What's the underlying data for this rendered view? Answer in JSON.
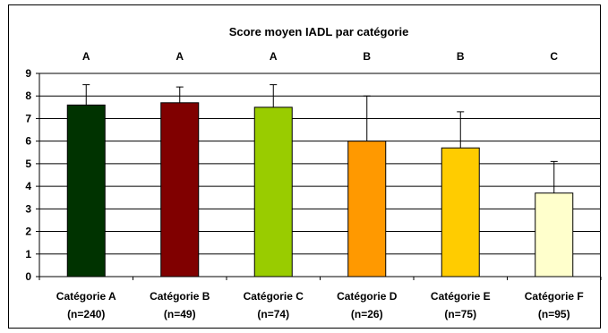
{
  "chart_data": {
    "type": "bar",
    "title": "Score moyen IADL par catégorie",
    "categories": [
      [
        "Catégorie A",
        "(n=240)"
      ],
      [
        "Catégorie B",
        "(n=49)"
      ],
      [
        "Catégorie C",
        "(n=74)"
      ],
      [
        "Catégorie D",
        "(n=26)"
      ],
      [
        "Catégorie E",
        "(n=75)"
      ],
      [
        "Catégorie F",
        "(n=95)"
      ]
    ],
    "values": [
      7.6,
      7.7,
      7.5,
      6.0,
      5.7,
      3.7
    ],
    "error_upper": [
      0.9,
      0.7,
      1.0,
      2.0,
      1.6,
      1.4
    ],
    "group_letters": [
      "A",
      "A",
      "A",
      "B",
      "B",
      "C"
    ],
    "bar_colors": [
      "#003300",
      "#800000",
      "#99cc00",
      "#ff9900",
      "#ffcc00",
      "#ffffcc"
    ],
    "ylim": [
      0,
      9
    ],
    "yticks": [
      0,
      1,
      2,
      3,
      4,
      5,
      6,
      7,
      8,
      9
    ],
    "grid": true,
    "xlabel": "",
    "ylabel": ""
  }
}
